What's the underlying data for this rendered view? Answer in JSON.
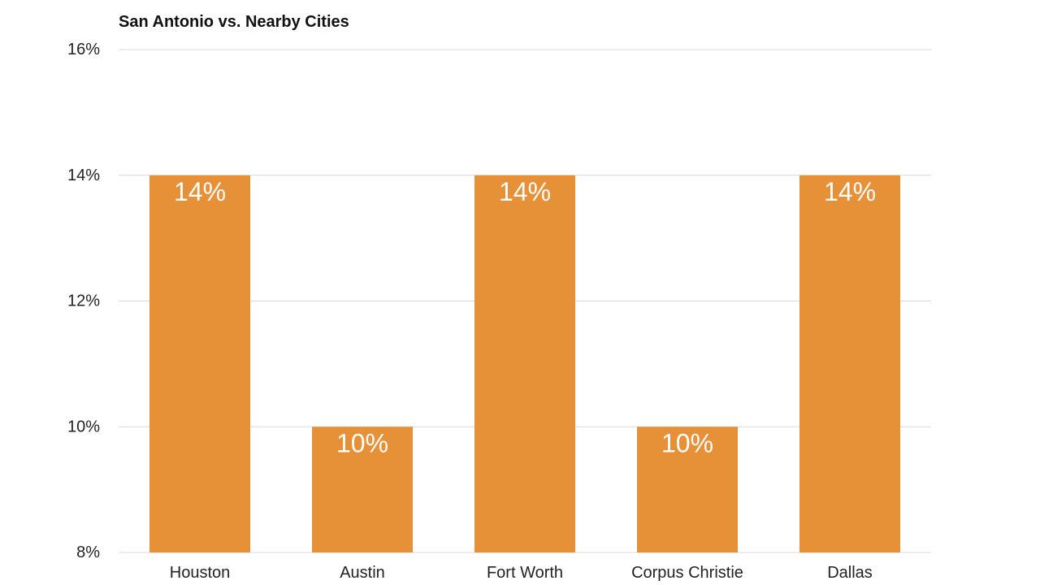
{
  "chart_data": {
    "type": "bar",
    "title": "San Antonio vs. Nearby Cities",
    "categories": [
      "Houston",
      "Austin",
      "Fort Worth",
      "Corpus Christie",
      "Dallas"
    ],
    "values": [
      14,
      10,
      14,
      10,
      14
    ],
    "data_labels": [
      "14%",
      "10%",
      "14%",
      "10%",
      "14%"
    ],
    "y_ticks": [
      8,
      10,
      12,
      14,
      16
    ],
    "y_tick_labels": [
      "8%",
      "10%",
      "12%",
      "14%",
      "16%"
    ],
    "ylim": [
      8,
      16
    ],
    "grid": true,
    "legend": "none",
    "bar_color": "#E69138",
    "grid_color": "#D9D9D9"
  }
}
